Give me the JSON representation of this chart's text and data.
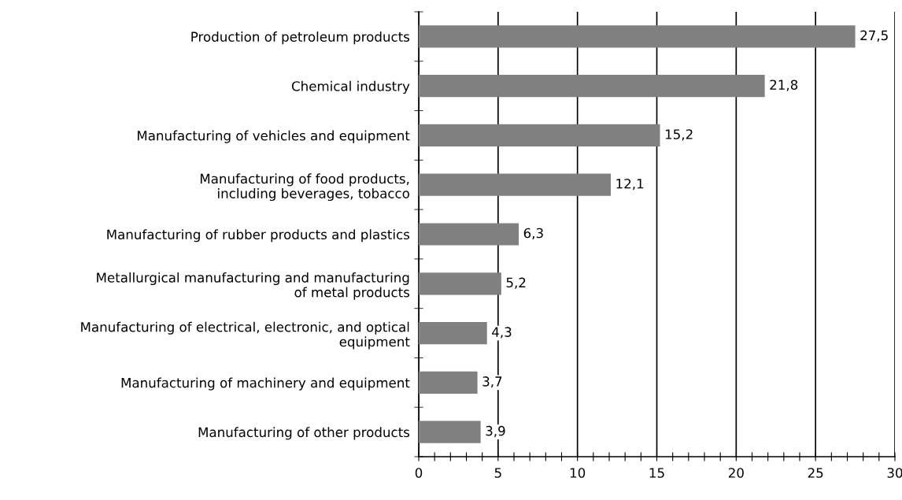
{
  "chart_data": {
    "type": "bar",
    "orientation": "horizontal",
    "categories": [
      "Production of petroleum products",
      "Chemical industry",
      "Manufacturing of vehicles and equipment",
      "Manufacturing of food products,\nincluding beverages, tobacco",
      "Manufacturing of rubber products and plastics",
      "Metallurgical manufacturing and manufacturing\nof metal products",
      "Manufacturing of electrical, electronic, and optical\nequipment",
      "Manufacturing of machinery and equipment",
      "Manufacturing of other products"
    ],
    "values": [
      27.5,
      21.8,
      15.2,
      12.1,
      6.3,
      5.2,
      4.3,
      3.7,
      3.9
    ],
    "value_labels": [
      "27,5",
      "21,8",
      "15,2",
      "12,1",
      "6,3",
      "5,2",
      "4,3",
      "3,7",
      "3,9"
    ],
    "color": "#808080",
    "xlim": [
      0,
      30
    ],
    "xticks": [
      0,
      {
        "value": 1,
        "label": null
      },
      {
        "value": 2,
        "label": null
      },
      {
        "value": 3,
        "label": null
      },
      {
        "value": 4,
        "label": null
      },
      5,
      {
        "value": 6,
        "label": null
      },
      {
        "value": 7,
        "label": null
      },
      {
        "value": 8,
        "label": null
      },
      {
        "value": 9,
        "label": null
      },
      10,
      {
        "value": 11,
        "label": null
      },
      {
        "value": 12,
        "label": null
      },
      {
        "value": 13,
        "label": null
      },
      {
        "value": 14,
        "label": null
      },
      15,
      {
        "value": 16,
        "label": null
      },
      {
        "value": 17,
        "label": null
      },
      {
        "value": 18,
        "label": null
      },
      {
        "value": 19,
        "label": null
      },
      20,
      {
        "value": 21,
        "label": null
      },
      {
        "value": 22,
        "label": null
      },
      {
        "value": 23,
        "label": null
      },
      {
        "value": 24,
        "label": null
      },
      25,
      {
        "value": 26,
        "label": null
      },
      {
        "value": 27,
        "label": null
      },
      {
        "value": 28,
        "label": null
      },
      {
        "value": 29,
        "label": null
      },
      30
    ],
    "grid": "x"
  }
}
